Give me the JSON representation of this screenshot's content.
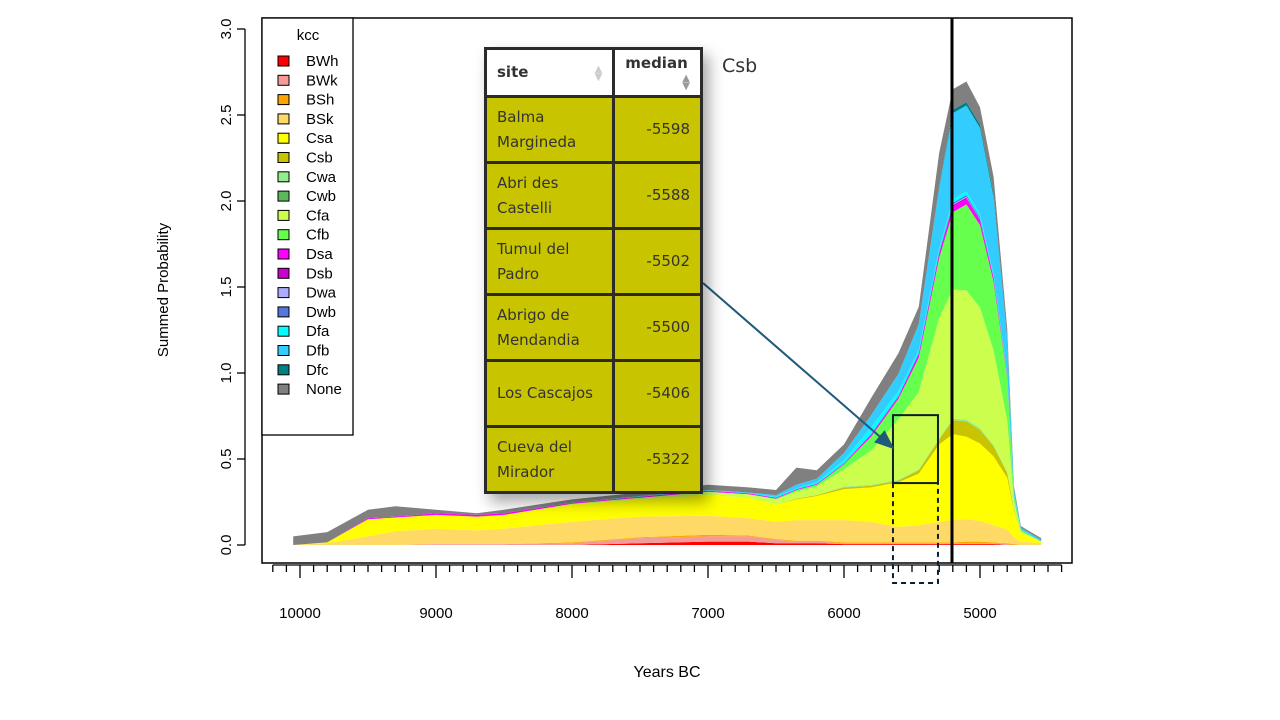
{
  "chart_data": {
    "type": "area",
    "stacked": true,
    "xlabel": "Years BC",
    "ylabel": "Summed Probability",
    "xlim": [
      10280,
      4324
    ],
    "ylim": [
      0,
      3.0
    ],
    "xticks": [
      10000,
      9000,
      8000,
      7000,
      6000,
      5000
    ],
    "yticks": [
      "0.0",
      "0.5",
      "1.0",
      "1.5",
      "2.0",
      "2.5",
      "3.0"
    ],
    "legend": {
      "title": "kcc",
      "placement": "top-left"
    },
    "x": [
      10050,
      9800,
      9500,
      9300,
      9000,
      8700,
      8500,
      8000,
      7500,
      7000,
      6700,
      6500,
      6350,
      6200,
      6000,
      5800,
      5600,
      5450,
      5300,
      5200,
      5100,
      5000,
      4900,
      4800,
      4750,
      4700,
      4550
    ],
    "series": [
      {
        "name": "BWh",
        "color": "#ff0000",
        "values": [
          0,
          0,
          0,
          0,
          0,
          0,
          0,
          0,
          0.01,
          0.02,
          0.02,
          0.01,
          0.01,
          0.01,
          0.005,
          0.005,
          0.005,
          0.005,
          0.005,
          0.005,
          0.005,
          0.005,
          0.005,
          0,
          0,
          0,
          0
        ]
      },
      {
        "name": "BWk",
        "color": "#f59a9a",
        "values": [
          0,
          0,
          0,
          0,
          0.005,
          0.005,
          0.005,
          0.01,
          0.03,
          0.03,
          0.03,
          0.02,
          0.01,
          0.01,
          0.005,
          0.005,
          0.005,
          0.005,
          0.005,
          0.005,
          0.005,
          0.005,
          0.005,
          0.005,
          0,
          0,
          0
        ]
      },
      {
        "name": "BSh",
        "color": "#ffa500",
        "values": [
          0,
          0,
          0,
          0,
          0,
          0,
          0,
          0.005,
          0.005,
          0.01,
          0.005,
          0.005,
          0.005,
          0.005,
          0.005,
          0.005,
          0.005,
          0.005,
          0.005,
          0.005,
          0.01,
          0.01,
          0.005,
          0.005,
          0.005,
          0,
          0
        ]
      },
      {
        "name": "BSk",
        "color": "#ffd966",
        "values": [
          0,
          0.01,
          0.05,
          0.08,
          0.09,
          0.08,
          0.09,
          0.12,
          0.12,
          0.11,
          0.1,
          0.1,
          0.12,
          0.12,
          0.13,
          0.12,
          0.09,
          0.1,
          0.12,
          0.13,
          0.13,
          0.12,
          0.1,
          0.08,
          0.04,
          0.02,
          0.01
        ]
      },
      {
        "name": "Csa",
        "color": "#ffff00",
        "values": [
          0,
          0.005,
          0.1,
          0.08,
          0.08,
          0.08,
          0.08,
          0.1,
          0.1,
          0.12,
          0.12,
          0.1,
          0.12,
          0.14,
          0.18,
          0.2,
          0.26,
          0.3,
          0.45,
          0.5,
          0.48,
          0.45,
          0.4,
          0.3,
          0.15,
          0.05,
          0.01
        ]
      },
      {
        "name": "Csb",
        "color": "#c8c400",
        "values": [
          0,
          0,
          0,
          0,
          0,
          0,
          0,
          0,
          0,
          0,
          0,
          0,
          0.005,
          0.005,
          0.01,
          0.01,
          0.01,
          0.02,
          0.03,
          0.08,
          0.09,
          0.08,
          0.06,
          0.03,
          0.01,
          0,
          0
        ]
      },
      {
        "name": "Cwa",
        "color": "#90ee90",
        "values": [
          0,
          0,
          0,
          0,
          0,
          0,
          0,
          0,
          0,
          0,
          0,
          0,
          0,
          0,
          0.005,
          0.005,
          0.005,
          0.005,
          0.005,
          0.01,
          0.01,
          0.01,
          0.005,
          0.005,
          0,
          0,
          0
        ]
      },
      {
        "name": "Cwb",
        "color": "#5cb85c",
        "values": [
          0,
          0,
          0,
          0,
          0,
          0,
          0,
          0,
          0,
          0,
          0,
          0,
          0,
          0,
          0,
          0,
          0,
          0,
          0,
          0,
          0,
          0,
          0,
          0,
          0,
          0,
          0
        ]
      },
      {
        "name": "Cfa",
        "color": "#ccff4d",
        "values": [
          0,
          0,
          0,
          0,
          0,
          0,
          0,
          0.005,
          0.01,
          0.02,
          0.02,
          0.03,
          0.04,
          0.05,
          0.1,
          0.2,
          0.35,
          0.45,
          0.7,
          0.75,
          0.75,
          0.7,
          0.55,
          0.3,
          0.05,
          0.01,
          0
        ]
      },
      {
        "name": "Cfb",
        "color": "#66ff4d",
        "values": [
          0,
          0,
          0,
          0,
          0,
          0,
          0,
          0,
          0,
          0,
          0,
          0.005,
          0.01,
          0.01,
          0.03,
          0.08,
          0.12,
          0.2,
          0.35,
          0.45,
          0.5,
          0.48,
          0.4,
          0.25,
          0.03,
          0.01,
          0
        ]
      },
      {
        "name": "Dsa",
        "color": "#ff00ff",
        "values": [
          0,
          0,
          0.005,
          0.005,
          0.01,
          0.01,
          0.01,
          0.005,
          0.005,
          0.005,
          0.005,
          0.005,
          0.005,
          0.005,
          0.005,
          0.01,
          0.01,
          0.02,
          0.02,
          0.03,
          0.03,
          0.02,
          0.02,
          0.01,
          0,
          0,
          0
        ]
      },
      {
        "name": "Dsb",
        "color": "#cc00cc",
        "values": [
          0,
          0,
          0,
          0,
          0,
          0,
          0,
          0,
          0,
          0,
          0,
          0,
          0,
          0,
          0,
          0.005,
          0.005,
          0.005,
          0.01,
          0.01,
          0.01,
          0.01,
          0.005,
          0.005,
          0,
          0,
          0
        ]
      },
      {
        "name": "Dwa",
        "color": "#aaaaff",
        "values": [
          0,
          0,
          0,
          0,
          0,
          0,
          0,
          0,
          0,
          0,
          0,
          0,
          0,
          0,
          0,
          0,
          0,
          0,
          0,
          0.005,
          0.005,
          0.005,
          0,
          0,
          0,
          0,
          0
        ]
      },
      {
        "name": "Dwb",
        "color": "#5577dd",
        "values": [
          0,
          0,
          0,
          0,
          0,
          0,
          0,
          0,
          0,
          0,
          0,
          0,
          0,
          0,
          0,
          0,
          0,
          0,
          0.005,
          0.01,
          0.01,
          0.01,
          0.005,
          0,
          0,
          0,
          0
        ]
      },
      {
        "name": "Dfa",
        "color": "#00ffff",
        "values": [
          0,
          0,
          0,
          0,
          0,
          0,
          0,
          0,
          0,
          0,
          0,
          0.005,
          0.005,
          0.01,
          0.02,
          0.04,
          0.03,
          0.02,
          0.02,
          0.02,
          0.02,
          0.02,
          0.01,
          0.01,
          0.005,
          0,
          0
        ]
      },
      {
        "name": "Dfb",
        "color": "#33ccff",
        "values": [
          0,
          0,
          0,
          0,
          0,
          0,
          0,
          0,
          0.005,
          0.005,
          0.005,
          0.01,
          0.02,
          0.02,
          0.04,
          0.07,
          0.1,
          0.15,
          0.35,
          0.5,
          0.5,
          0.5,
          0.45,
          0.2,
          0.03,
          0.01,
          0.01
        ]
      },
      {
        "name": "Dfc",
        "color": "#008080",
        "values": [
          0,
          0,
          0,
          0,
          0,
          0,
          0,
          0,
          0,
          0,
          0,
          0,
          0,
          0,
          0,
          0,
          0,
          0,
          0.005,
          0.02,
          0.02,
          0.02,
          0.02,
          0.01,
          0,
          0,
          0
        ]
      },
      {
        "name": "None",
        "color": "#808080",
        "values": [
          0.05,
          0.06,
          0.05,
          0.06,
          0.02,
          0.01,
          0.02,
          0.02,
          0.02,
          0.03,
          0.03,
          0.03,
          0.1,
          0.05,
          0.05,
          0.1,
          0.12,
          0.1,
          0.2,
          0.12,
          0.12,
          0.1,
          0.1,
          0.05,
          0.02,
          0.01,
          0.01
        ]
      }
    ],
    "annotations": {
      "vertical_line_year": 5206,
      "highlight_box": {
        "x_range": [
          5640,
          5309
        ],
        "y_range": [
          0.36,
          0.755
        ]
      }
    }
  },
  "overlay_table": {
    "label": "Csb",
    "headers": [
      "site",
      "median"
    ],
    "rows": [
      {
        "site": "Balma Margineda",
        "median": "-5598"
      },
      {
        "site": "Abri des Castelli",
        "median": "-5588"
      },
      {
        "site": "Tumul del Padro",
        "median": "-5502"
      },
      {
        "site": "Abrigo de Mendandia",
        "median": "-5500"
      },
      {
        "site": "Los Cascajos",
        "median": "-5406"
      },
      {
        "site": "Cueva del Mirador",
        "median": "-5322"
      }
    ]
  }
}
